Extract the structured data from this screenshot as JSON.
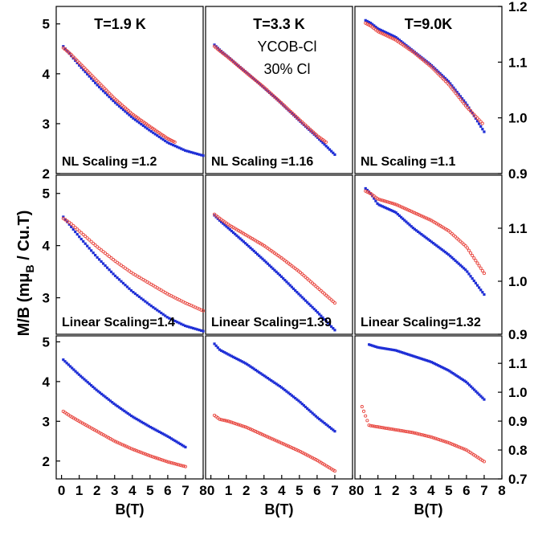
{
  "figure": {
    "ylabel_main": "M/B (m",
    "ylabel_mu": "μ",
    "ylabel_sub": "B",
    "ylabel_tail": " / Cu.T)"
  },
  "colors": {
    "blue": "#1f2fd6",
    "red": "#e8463f"
  },
  "chart_data": [
    {
      "type": "scatter",
      "panel": "1.9K-NL",
      "x_ticks": [],
      "y_ticks": [
        2,
        3,
        4,
        5
      ],
      "ylim": [
        2,
        5.35
      ],
      "xlim": [
        -0.3,
        8
      ],
      "title": "T=1.9 K",
      "annotation": "NL Scaling =1.2",
      "series": [
        {
          "color": "blue",
          "x": [
            0.1,
            0.5,
            1,
            2,
            3,
            4,
            5,
            6,
            7,
            8
          ],
          "y": [
            4.55,
            4.38,
            4.17,
            3.78,
            3.43,
            3.12,
            2.86,
            2.62,
            2.46,
            2.36
          ]
        },
        {
          "color": "red",
          "x": [
            0.1,
            0.5,
            1,
            2,
            3,
            4,
            5,
            6,
            6.4
          ],
          "y": [
            4.52,
            4.4,
            4.22,
            3.86,
            3.5,
            3.19,
            2.94,
            2.7,
            2.63
          ]
        }
      ]
    },
    {
      "type": "scatter",
      "panel": "3.3K-NL",
      "x_ticks": [],
      "y_ticks": [],
      "ylim": [
        2,
        5.35
      ],
      "xlim": [
        -0.3,
        8
      ],
      "title": "T=3.3 K",
      "annotation": "NL Scaling =1.16",
      "label_line1": "YCOB-Cl",
      "label_line2": "30% Cl",
      "series": [
        {
          "color": "blue",
          "x": [
            0.2,
            0.5,
            1,
            2,
            3,
            4,
            5,
            6,
            7
          ],
          "y": [
            4.58,
            4.48,
            4.33,
            4.03,
            3.72,
            3.4,
            3.06,
            2.73,
            2.38
          ]
        },
        {
          "color": "red",
          "x": [
            0.2,
            0.5,
            1,
            2,
            3,
            4,
            5,
            6,
            6.5
          ],
          "y": [
            4.55,
            4.46,
            4.32,
            4.02,
            3.73,
            3.41,
            3.08,
            2.76,
            2.63
          ]
        }
      ]
    },
    {
      "type": "scatter",
      "panel": "9.0K-NL",
      "x_ticks": [],
      "y_ticks": [
        0.9,
        1.0,
        1.1,
        1.2
      ],
      "ylim": [
        0.9,
        1.2
      ],
      "xlim": [
        -0.3,
        8
      ],
      "title": "T=9.0K",
      "annotation": "NL Scaling =1.1",
      "series": [
        {
          "color": "blue",
          "x": [
            0.3,
            0.6,
            1,
            2,
            3,
            4,
            5,
            6,
            7
          ],
          "y": [
            1.175,
            1.17,
            1.16,
            1.145,
            1.12,
            1.095,
            1.065,
            1.025,
            0.975
          ]
        },
        {
          "color": "red",
          "x": [
            0.3,
            0.6,
            1,
            2,
            3,
            4,
            5,
            6,
            6.9
          ],
          "y": [
            1.17,
            1.165,
            1.155,
            1.14,
            1.118,
            1.092,
            1.06,
            1.02,
            0.99
          ]
        }
      ]
    },
    {
      "type": "scatter",
      "panel": "1.9K-Lin",
      "x_ticks": [],
      "y_ticks": [
        3,
        4,
        5
      ],
      "ylim": [
        2.3,
        5.35
      ],
      "xlim": [
        -0.3,
        8
      ],
      "annotation": "Linear Scaling=1.4",
      "series": [
        {
          "color": "blue",
          "x": [
            0.1,
            0.5,
            1,
            2,
            3,
            4,
            5,
            6,
            7,
            8
          ],
          "y": [
            4.55,
            4.38,
            4.17,
            3.78,
            3.43,
            3.12,
            2.86,
            2.62,
            2.46,
            2.36
          ]
        },
        {
          "color": "red",
          "x": [
            0.1,
            0.5,
            1,
            2,
            3,
            4,
            5,
            6,
            7,
            8
          ],
          "y": [
            4.52,
            4.43,
            4.28,
            3.98,
            3.71,
            3.47,
            3.27,
            3.07,
            2.9,
            2.75
          ]
        }
      ]
    },
    {
      "type": "scatter",
      "panel": "3.3K-Lin",
      "x_ticks": [],
      "y_ticks": [],
      "ylim": [
        2.3,
        5.35
      ],
      "xlim": [
        -0.3,
        8
      ],
      "annotation": "Linear Scaling=1.39",
      "series": [
        {
          "color": "blue",
          "x": [
            0.2,
            0.5,
            1,
            2,
            3,
            4,
            5,
            6,
            7
          ],
          "y": [
            4.58,
            4.48,
            4.33,
            4.03,
            3.72,
            3.4,
            3.06,
            2.73,
            2.38
          ]
        },
        {
          "color": "red",
          "x": [
            0.2,
            0.5,
            1,
            2,
            3,
            4,
            5,
            6,
            7
          ],
          "y": [
            4.6,
            4.52,
            4.4,
            4.2,
            4.0,
            3.76,
            3.5,
            3.2,
            2.9
          ]
        }
      ]
    },
    {
      "type": "scatter",
      "panel": "9.0K-Lin",
      "x_ticks": [],
      "y_ticks": [
        0.9,
        1.0,
        1.1
      ],
      "ylim": [
        0.9,
        1.2
      ],
      "xlim": [
        -0.3,
        8
      ],
      "annotation": "Linear Scaling=1.32",
      "series": [
        {
          "color": "blue",
          "x": [
            0.3,
            0.6,
            1,
            2,
            3,
            4,
            5,
            6,
            7
          ],
          "y": [
            1.175,
            1.165,
            1.145,
            1.13,
            1.1,
            1.075,
            1.05,
            1.02,
            0.975
          ]
        },
        {
          "color": "red",
          "x": [
            0.3,
            0.6,
            1,
            2,
            3,
            4,
            5,
            6,
            7
          ],
          "y": [
            1.17,
            1.165,
            1.155,
            1.145,
            1.13,
            1.115,
            1.095,
            1.065,
            1.015
          ]
        }
      ]
    },
    {
      "type": "scatter",
      "panel": "1.9K-raw",
      "x_ticks": [
        0,
        1,
        2,
        3,
        4,
        5,
        6,
        7,
        8
      ],
      "y_ticks": [
        2,
        3,
        4,
        5
      ],
      "ylim": [
        1.55,
        5.15
      ],
      "xlim": [
        -0.3,
        8
      ],
      "series": [
        {
          "color": "blue",
          "x": [
            0.1,
            0.5,
            1,
            2,
            3,
            4,
            5,
            6,
            7
          ],
          "y": [
            4.55,
            4.38,
            4.17,
            3.78,
            3.43,
            3.12,
            2.86,
            2.62,
            2.35
          ]
        },
        {
          "color": "red",
          "x": [
            0.1,
            0.5,
            1,
            2,
            3,
            4,
            5,
            6,
            7
          ],
          "y": [
            3.25,
            3.13,
            3.0,
            2.75,
            2.5,
            2.3,
            2.13,
            1.98,
            1.86
          ]
        }
      ]
    },
    {
      "type": "scatter",
      "panel": "3.3K-raw",
      "x_ticks": [
        0,
        1,
        2,
        3,
        4,
        5,
        6,
        7,
        8
      ],
      "y_ticks": [],
      "ylim": [
        1.55,
        5.15
      ],
      "xlim": [
        -0.3,
        8
      ],
      "series": [
        {
          "color": "blue",
          "x": [
            0.2,
            0.5,
            1,
            2,
            3,
            4,
            5,
            6,
            7
          ],
          "y": [
            4.95,
            4.8,
            4.68,
            4.45,
            4.15,
            3.85,
            3.5,
            3.1,
            2.75
          ]
        },
        {
          "color": "red",
          "x": [
            0.2,
            0.5,
            1,
            2,
            3,
            4,
            5,
            6,
            7
          ],
          "y": [
            3.15,
            3.05,
            3.0,
            2.85,
            2.65,
            2.45,
            2.25,
            2.02,
            1.75
          ]
        }
      ]
    },
    {
      "type": "scatter",
      "panel": "9.0K-raw",
      "x_ticks": [
        0,
        1,
        2,
        3,
        4,
        5,
        6,
        7,
        8
      ],
      "y_ticks": [
        0.7,
        0.8,
        0.9,
        1.0,
        1.1
      ],
      "ylim": [
        0.7,
        1.195
      ],
      "xlim": [
        -0.3,
        8
      ],
      "series": [
        {
          "color": "blue",
          "x": [
            0.5,
            1,
            2,
            3,
            4,
            5,
            6,
            7
          ],
          "y": [
            1.165,
            1.155,
            1.145,
            1.125,
            1.105,
            1.075,
            1.035,
            0.975
          ]
        },
        {
          "color": "red",
          "x": [
            0.1,
            0.5,
            1,
            2,
            3,
            4,
            5,
            6,
            7
          ],
          "y": [
            0.95,
            0.885,
            0.88,
            0.87,
            0.86,
            0.845,
            0.825,
            0.8,
            0.76
          ]
        }
      ]
    }
  ],
  "xlabel": "B(T)",
  "right_axis_ticks": {
    "row1": [
      "1.2",
      "1.1",
      "1.0",
      "0.9"
    ],
    "row2": [
      "0.9",
      "1.1",
      "1.0",
      "0.9"
    ],
    "row3": [
      "0.9",
      "1.1",
      "1.0",
      "0.9",
      "0.8",
      "0.7"
    ]
  }
}
